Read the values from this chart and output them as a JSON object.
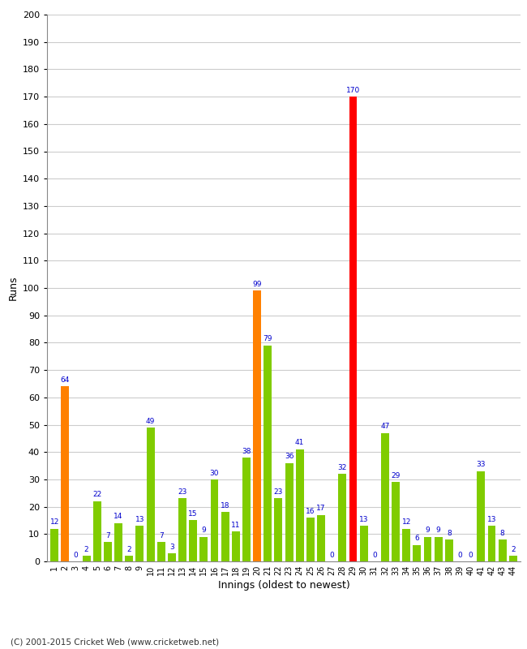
{
  "innings": [
    1,
    2,
    3,
    4,
    5,
    6,
    7,
    8,
    9,
    10,
    11,
    12,
    13,
    14,
    15,
    16,
    17,
    18,
    19,
    20,
    21,
    22,
    23,
    24,
    25,
    26,
    27,
    28,
    29,
    30,
    31,
    32,
    33,
    34,
    35,
    36,
    37,
    38,
    39,
    40,
    41,
    42,
    43,
    44
  ],
  "values": [
    12,
    64,
    0,
    2,
    22,
    7,
    14,
    2,
    13,
    49,
    7,
    3,
    23,
    15,
    9,
    30,
    18,
    11,
    38,
    99,
    79,
    23,
    36,
    41,
    16,
    17,
    0,
    32,
    170,
    13,
    0,
    47,
    29,
    12,
    6,
    9,
    9,
    8,
    0,
    0,
    33,
    13,
    8,
    2
  ],
  "colors": [
    "#80cc00",
    "#ff8000",
    "#80cc00",
    "#80cc00",
    "#80cc00",
    "#80cc00",
    "#80cc00",
    "#80cc00",
    "#80cc00",
    "#80cc00",
    "#80cc00",
    "#80cc00",
    "#80cc00",
    "#80cc00",
    "#80cc00",
    "#80cc00",
    "#80cc00",
    "#80cc00",
    "#80cc00",
    "#ff8000",
    "#80cc00",
    "#80cc00",
    "#80cc00",
    "#80cc00",
    "#80cc00",
    "#80cc00",
    "#80cc00",
    "#80cc00",
    "#ff0000",
    "#80cc00",
    "#80cc00",
    "#80cc00",
    "#80cc00",
    "#80cc00",
    "#80cc00",
    "#80cc00",
    "#80cc00",
    "#80cc00",
    "#80cc00",
    "#80cc00",
    "#80cc00",
    "#80cc00",
    "#80cc00",
    "#80cc00"
  ],
  "xlabel": "Innings (oldest to newest)",
  "ylabel": "Runs",
  "ylim": [
    0,
    200
  ],
  "yticks": [
    0,
    10,
    20,
    30,
    40,
    50,
    60,
    70,
    80,
    90,
    100,
    110,
    120,
    130,
    140,
    150,
    160,
    170,
    180,
    190,
    200
  ],
  "background_color": "#ffffff",
  "grid_color": "#cccccc",
  "label_color": "#0000cc",
  "footer": "(C) 2001-2015 Cricket Web (www.cricketweb.net)"
}
